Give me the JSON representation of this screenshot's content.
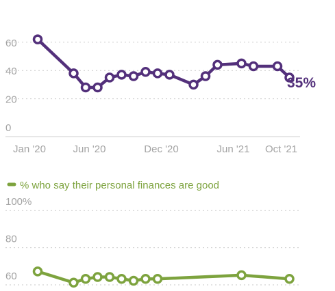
{
  "chart_data": [
    {
      "type": "line",
      "color": "#53307b",
      "yticks": [
        0,
        20,
        40,
        60
      ],
      "ylim": [
        0,
        64
      ],
      "x_tick_labels": [
        "Jan '20",
        "Jun '20",
        "Dec '20",
        "Jun '21",
        "Oct '21"
      ],
      "series": [
        {
          "x": [
            "Jan '20",
            "Apr '20",
            "May '20",
            "Jun '20",
            "Jul '20",
            "Aug '20",
            "Sep '20",
            "Oct '20",
            "Nov '20",
            "Dec '20",
            "Feb '21",
            "Mar '21",
            "Apr '21",
            "Jun '21",
            "Jul '21",
            "Sep '21",
            "Oct '21"
          ],
          "values": [
            62,
            38,
            28,
            28,
            35,
            37,
            36,
            39,
            38,
            37,
            30,
            36,
            44,
            45,
            43,
            43,
            35
          ]
        }
      ],
      "end_label": "35%",
      "grid": true
    },
    {
      "type": "line",
      "color": "#7da33e",
      "legend": "% who say their personal finances are good",
      "yticks": [
        "60",
        "80",
        "100%"
      ],
      "ylim": [
        50,
        100
      ],
      "series": [
        {
          "name": "% who say their personal finances are good",
          "x": [
            "Jan '20",
            "Apr '20",
            "May '20",
            "Jun '20",
            "Jul '20",
            "Aug '20",
            "Sep '20",
            "Oct '20",
            "Nov '20",
            "Jun '21",
            "Oct '21"
          ],
          "values": [
            65,
            59,
            61,
            62,
            62,
            61,
            60,
            61,
            61,
            63,
            61
          ]
        }
      ],
      "grid": true
    }
  ]
}
